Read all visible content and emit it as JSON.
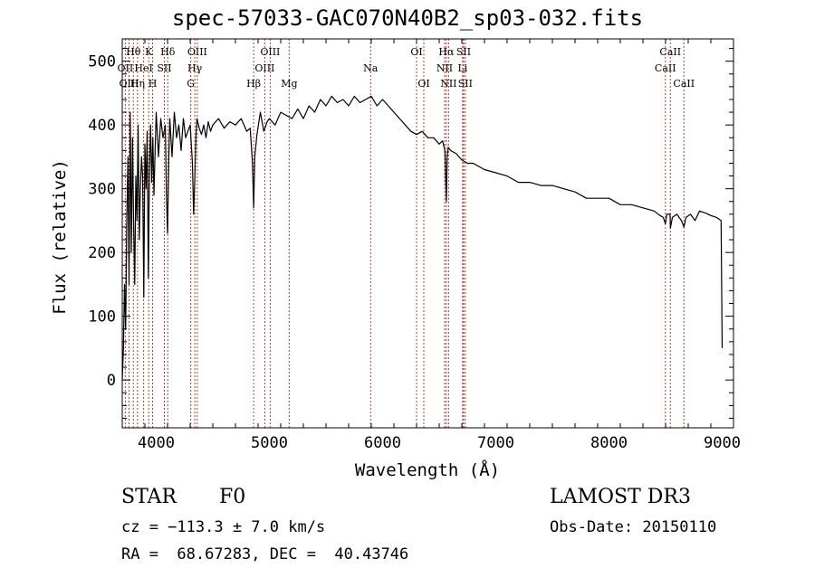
{
  "chart_data": {
    "type": "line",
    "title": "spec-57033-GAC070N40B2_sp03-032.fits",
    "xlabel": "Wavelength (Å)",
    "ylabel": "Flux (relative)",
    "xlim": [
      3700,
      9100
    ],
    "ylim": [
      -75,
      535
    ],
    "xticks": [
      4000,
      5000,
      6000,
      7000,
      8000,
      9000
    ],
    "yticks": [
      0,
      100,
      200,
      300,
      400,
      500
    ],
    "series": [
      {
        "name": "flux",
        "x": [
          3700,
          3710,
          3720,
          3730,
          3740,
          3750,
          3760,
          3770,
          3780,
          3790,
          3800,
          3810,
          3820,
          3830,
          3840,
          3850,
          3860,
          3870,
          3880,
          3890,
          3900,
          3910,
          3920,
          3930,
          3940,
          3950,
          3960,
          3970,
          3980,
          3990,
          4000,
          4020,
          4040,
          4060,
          4080,
          4090,
          4100,
          4110,
          4120,
          4140,
          4160,
          4180,
          4200,
          4220,
          4240,
          4260,
          4280,
          4300,
          4320,
          4330,
          4340,
          4350,
          4360,
          4380,
          4400,
          4420,
          4440,
          4460,
          4480,
          4500,
          4550,
          4600,
          4650,
          4700,
          4750,
          4800,
          4830,
          4850,
          4861,
          4870,
          4890,
          4920,
          4950,
          4980,
          5000,
          5050,
          5100,
          5150,
          5200,
          5250,
          5300,
          5350,
          5400,
          5450,
          5500,
          5550,
          5600,
          5650,
          5700,
          5750,
          5800,
          5850,
          5900,
          5950,
          6000,
          6050,
          6100,
          6150,
          6200,
          6250,
          6300,
          6350,
          6400,
          6450,
          6500,
          6530,
          6550,
          6563,
          6570,
          6580,
          6600,
          6650,
          6700,
          6750,
          6800,
          6900,
          7000,
          7100,
          7200,
          7300,
          7400,
          7500,
          7600,
          7700,
          7800,
          7900,
          8000,
          8100,
          8200,
          8300,
          8400,
          8450,
          8480,
          8498,
          8510,
          8540,
          8542,
          8560,
          8600,
          8640,
          8662,
          8680,
          8720,
          8760,
          8800,
          8850,
          8900,
          8950,
          8990,
          9000
        ],
        "values": [
          0,
          50,
          150,
          80,
          250,
          350,
          150,
          420,
          200,
          380,
          250,
          150,
          320,
          250,
          400,
          220,
          300,
          350,
          320,
          130,
          370,
          300,
          390,
          160,
          330,
          400,
          310,
          380,
          290,
          360,
          420,
          350,
          410,
          380,
          400,
          290,
          230,
          340,
          410,
          350,
          420,
          380,
          400,
          360,
          410,
          380,
          390,
          400,
          340,
          260,
          310,
          380,
          410,
          395,
          385,
          400,
          380,
          405,
          390,
          400,
          410,
          395,
          405,
          400,
          410,
          390,
          395,
          340,
          270,
          350,
          385,
          420,
          390,
          405,
          410,
          400,
          420,
          415,
          410,
          425,
          410,
          430,
          420,
          440,
          430,
          445,
          435,
          440,
          430,
          445,
          435,
          440,
          445,
          430,
          440,
          430,
          420,
          410,
          400,
          390,
          385,
          390,
          380,
          380,
          370,
          375,
          360,
          280,
          350,
          365,
          360,
          355,
          345,
          340,
          340,
          330,
          325,
          320,
          310,
          310,
          305,
          305,
          300,
          295,
          285,
          285,
          285,
          275,
          275,
          270,
          265,
          258,
          255,
          245,
          260,
          260,
          238,
          255,
          260,
          250,
          240,
          255,
          260,
          250,
          265,
          262,
          258,
          255,
          250,
          50
        ]
      }
    ],
    "line_labels": [
      {
        "name": "Hθ",
        "x": 3798,
        "row": 0
      },
      {
        "name": "K",
        "x": 3934,
        "row": 0
      },
      {
        "name": "Hδ",
        "x": 4102,
        "row": 0
      },
      {
        "name": "OII",
        "x": 3727,
        "row": 1
      },
      {
        "name": "HeI",
        "x": 3889,
        "row": 1
      },
      {
        "name": "SII",
        "x": 4072,
        "row": 1
      },
      {
        "name": "OIII",
        "x": 3760,
        "row": 2
      },
      {
        "name": "Hη",
        "x": 3835,
        "row": 2
      },
      {
        "name": "H",
        "x": 3968,
        "row": 2
      },
      {
        "name": "OIII",
        "x": 4363,
        "row": 0
      },
      {
        "name": "Hγ",
        "x": 4341,
        "row": 1
      },
      {
        "name": "G",
        "x": 4305,
        "row": 2
      },
      {
        "name": "OIII",
        "x": 5007,
        "row": 0
      },
      {
        "name": "OIII",
        "x": 4959,
        "row": 1
      },
      {
        "name": "Hβ",
        "x": 4861,
        "row": 2
      },
      {
        "name": "Mg",
        "x": 5175,
        "row": 2
      },
      {
        "name": "Na",
        "x": 5894,
        "row": 1
      },
      {
        "name": "OI",
        "x": 6300,
        "row": 0
      },
      {
        "name": "OI",
        "x": 6364,
        "row": 2
      },
      {
        "name": "Hα",
        "x": 6563,
        "row": 0
      },
      {
        "name": "SII",
        "x": 6716,
        "row": 0
      },
      {
        "name": "NII",
        "x": 6548,
        "row": 1
      },
      {
        "name": "Li",
        "x": 6707,
        "row": 1
      },
      {
        "name": "NII",
        "x": 6583,
        "row": 2
      },
      {
        "name": "SII",
        "x": 6731,
        "row": 2
      },
      {
        "name": "CaII",
        "x": 8542,
        "row": 0
      },
      {
        "name": "CaII",
        "x": 8498,
        "row": 1
      },
      {
        "name": "CaII",
        "x": 8662,
        "row": 2
      }
    ]
  },
  "info": {
    "object_class": "STAR",
    "subclass": "F0",
    "survey": "LAMOST DR3",
    "redshift_text": "cz = −113.3 ± 7.0 km/s",
    "obs_date": "Obs-Date: 20150110",
    "coordinates": "RA =  68.67283, DEC =  40.43746"
  },
  "colors": {
    "line_marker": "#c0392b",
    "spectrum": "#000000",
    "axis": "#000000"
  }
}
